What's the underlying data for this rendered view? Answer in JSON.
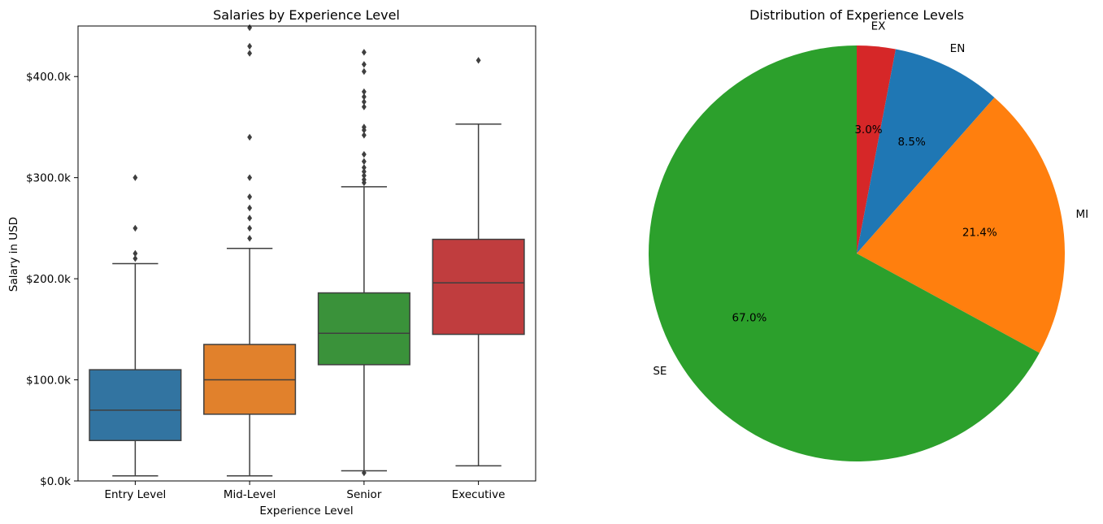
{
  "chart_data": [
    {
      "type": "box",
      "title": "Salaries by Experience Level",
      "xlabel": "Experience Level",
      "ylabel": "Salary in USD",
      "ylim": [
        0,
        450000
      ],
      "yticks": [
        0,
        100000,
        200000,
        300000,
        400000
      ],
      "ytick_labels": [
        "$0.0k",
        "$100.0k",
        "$200.0k",
        "$300.0k",
        "$400.0k"
      ],
      "categories": [
        "Entry Level",
        "Mid-Level",
        "Senior",
        "Executive"
      ],
      "boxes": [
        {
          "name": "Entry Level",
          "color": "#3274a1",
          "whisker_low": 5000,
          "q1": 40000,
          "median": 70000,
          "q3": 110000,
          "whisker_high": 215000,
          "outliers": [
            220000,
            225000,
            250000,
            300000
          ]
        },
        {
          "name": "Mid-Level",
          "color": "#e1812c",
          "whisker_low": 5000,
          "q1": 66000,
          "median": 100000,
          "q3": 135000,
          "whisker_high": 230000,
          "outliers": [
            240000,
            250000,
            260000,
            270000,
            281000,
            300000,
            340000,
            423000,
            430000,
            450000
          ]
        },
        {
          "name": "Senior",
          "color": "#3a923a",
          "whisker_low": 10000,
          "q1": 115000,
          "median": 146000,
          "q3": 186000,
          "whisker_high": 291000,
          "outliers": [
            8000,
            295000,
            298000,
            302000,
            306000,
            310000,
            316000,
            323000,
            342000,
            347000,
            350000,
            370000,
            375000,
            380000,
            385000,
            405000,
            412000,
            424000
          ]
        },
        {
          "name": "Executive",
          "color": "#c03d3e",
          "whisker_low": 15000,
          "q1": 145000,
          "median": 196000,
          "q3": 239000,
          "whisker_high": 353000,
          "outliers": [
            416000
          ]
        }
      ]
    },
    {
      "type": "pie",
      "title": "Distribution of Experience Levels",
      "labels": [
        "EX",
        "EN",
        "MI",
        "SE"
      ],
      "values": [
        3.0,
        8.5,
        21.4,
        67.0
      ],
      "value_labels": [
        "3.0%",
        "8.5%",
        "21.4%",
        "67.0%"
      ],
      "colors": [
        "#d62728",
        "#1f77b4",
        "#ff7f0e",
        "#2ca02c"
      ],
      "start_angle_deg": 90,
      "counterclockwise": false
    }
  ]
}
